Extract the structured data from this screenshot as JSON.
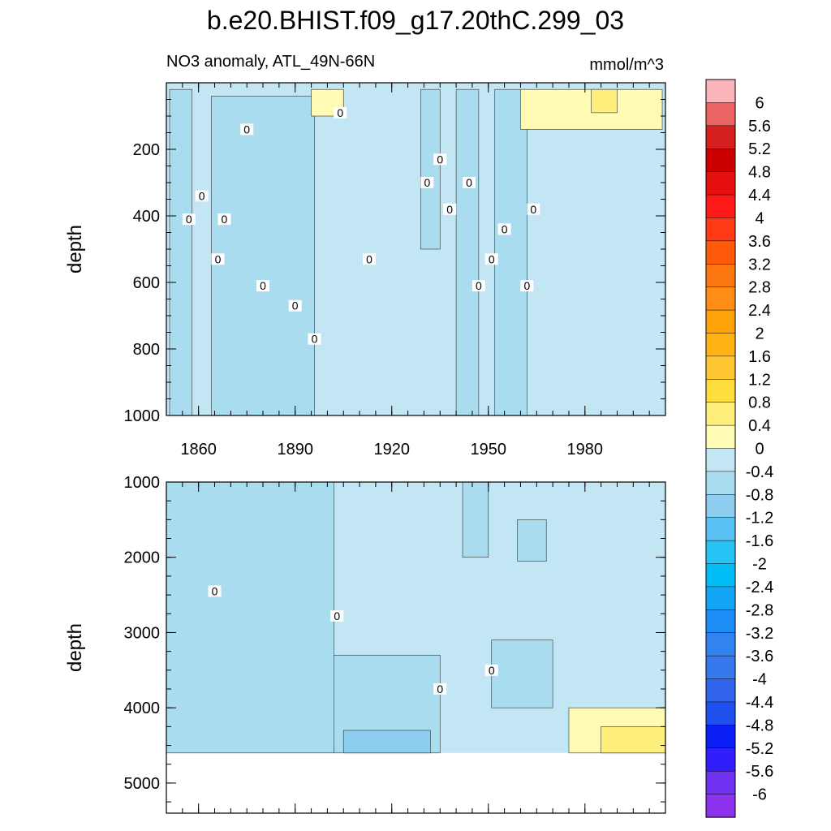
{
  "chart_data": {
    "type": "heatmap",
    "title": "b.e20.BHIST.f09_g17.20thC.299_03",
    "subtitle_left": "NO3 anomaly, ATL_49N-66N",
    "units": "mmol/m^3",
    "x": {
      "range": [
        1850,
        2005
      ],
      "tick_values": [
        1860,
        1890,
        1920,
        1950,
        1980
      ],
      "tick_labels": [
        "1860",
        "1890",
        "1920",
        "1950",
        "1980"
      ]
    },
    "panels": [
      {
        "name": "upper",
        "ylabel": "depth",
        "ylim": [
          0,
          1000
        ],
        "y_inverted": true,
        "tick_values": [
          200,
          400,
          600,
          800,
          1000
        ],
        "tick_labels": [
          "200",
          "400",
          "600",
          "800",
          "1000"
        ]
      },
      {
        "name": "lower",
        "ylabel": "depth",
        "ylim": [
          1000,
          5400
        ],
        "y_inverted": true,
        "tick_values": [
          1000,
          2000,
          3000,
          4000,
          5000
        ],
        "tick_labels": [
          "1000",
          "2000",
          "3000",
          "4000",
          "5000"
        ],
        "data_floor_depth": 4600
      }
    ],
    "contour_label": "0",
    "colorbar": {
      "labels": [
        "6",
        "5.6",
        "5.2",
        "4.8",
        "4.4",
        "4",
        "3.6",
        "3.2",
        "2.8",
        "2.4",
        "2",
        "1.6",
        "1.2",
        "0.8",
        "0.4",
        "0",
        "-0.4",
        "-0.8",
        "-1.2",
        "-1.6",
        "-2",
        "-2.4",
        "-2.8",
        "-3.2",
        "-3.6",
        "-4",
        "-4.4",
        "-4.8",
        "-5.2",
        "-5.6",
        "-6"
      ],
      "colors": [
        "#fbb4b9",
        "#eb6464",
        "#d52020",
        "#cc0000",
        "#e61010",
        "#ff1a1a",
        "#ff3a14",
        "#ff5a0a",
        "#fd7812",
        "#ff8c14",
        "#ffa20a",
        "#ffb414",
        "#ffc832",
        "#ffdd3c",
        "#fff07d",
        "#fffab4",
        "#c2e6f4",
        "#aadcf0",
        "#8ccdf0",
        "#5ac1f5",
        "#28c3f5",
        "#00bef5",
        "#14a5f5",
        "#1e8cf5",
        "#3282f0",
        "#3778ed",
        "#3264ee",
        "#1e50f0",
        "#0a1ef5",
        "#321efa",
        "#6e32f0",
        "#8c32ec"
      ]
    },
    "regions": [
      {
        "panel": "upper",
        "level": "-0.4",
        "time": [
          1851,
          1858
        ],
        "depth": [
          20,
          1000
        ]
      },
      {
        "panel": "upper",
        "level": "-0.4",
        "time": [
          1864,
          1896
        ],
        "depth": [
          40,
          1000
        ]
      },
      {
        "panel": "upper",
        "level": "-0.4",
        "time": [
          1929,
          1935
        ],
        "depth": [
          20,
          500
        ]
      },
      {
        "panel": "upper",
        "level": "-0.4",
        "time": [
          1940,
          1947
        ],
        "depth": [
          20,
          1000
        ]
      },
      {
        "panel": "upper",
        "level": "-0.4",
        "time": [
          1952,
          1962
        ],
        "depth": [
          20,
          1000
        ]
      },
      {
        "panel": "upper",
        "level": "0.4",
        "time": [
          1895,
          1905
        ],
        "depth": [
          20,
          100
        ]
      },
      {
        "panel": "upper",
        "level": "0.4",
        "time": [
          1960,
          2004
        ],
        "depth": [
          20,
          140
        ]
      },
      {
        "panel": "upper",
        "level": "0.8",
        "time": [
          1982,
          1990
        ],
        "depth": [
          20,
          90
        ]
      },
      {
        "panel": "lower",
        "level": "-0.4",
        "time": [
          1850,
          1902
        ],
        "depth": [
          1000,
          4600
        ]
      },
      {
        "panel": "lower",
        "level": "-0.4",
        "time": [
          1902,
          1935
        ],
        "depth": [
          3300,
          4600
        ]
      },
      {
        "panel": "lower",
        "level": "-0.4",
        "time": [
          1951,
          1970
        ],
        "depth": [
          3100,
          4000
        ]
      },
      {
        "panel": "lower",
        "level": "-0.4",
        "time": [
          1942,
          1950
        ],
        "depth": [
          1000,
          2000
        ]
      },
      {
        "panel": "lower",
        "level": "-0.4",
        "time": [
          1959,
          1968
        ],
        "depth": [
          1500,
          2050
        ]
      },
      {
        "panel": "lower",
        "level": "-0.8",
        "time": [
          1905,
          1932
        ],
        "depth": [
          4300,
          4600
        ]
      },
      {
        "panel": "lower",
        "level": "0.4",
        "time": [
          1975,
          2005
        ],
        "depth": [
          4000,
          4600
        ]
      },
      {
        "panel": "lower",
        "level": "0.8",
        "time": [
          1985,
          2005
        ],
        "depth": [
          4250,
          4600
        ]
      }
    ],
    "contour_label_positions": [
      {
        "panel": "upper",
        "year": 1857,
        "depth": 410
      },
      {
        "panel": "upper",
        "year": 1866,
        "depth": 530
      },
      {
        "panel": "upper",
        "year": 1868,
        "depth": 410
      },
      {
        "panel": "upper",
        "year": 1861,
        "depth": 340
      },
      {
        "panel": "upper",
        "year": 1875,
        "depth": 140
      },
      {
        "panel": "upper",
        "year": 1880,
        "depth": 610
      },
      {
        "panel": "upper",
        "year": 1890,
        "depth": 670
      },
      {
        "panel": "upper",
        "year": 1896,
        "depth": 770
      },
      {
        "panel": "upper",
        "year": 1904,
        "depth": 90
      },
      {
        "panel": "upper",
        "year": 1913,
        "depth": 530
      },
      {
        "panel": "upper",
        "year": 1931,
        "depth": 300
      },
      {
        "panel": "upper",
        "year": 1935,
        "depth": 230
      },
      {
        "panel": "upper",
        "year": 1938,
        "depth": 380
      },
      {
        "panel": "upper",
        "year": 1944,
        "depth": 300
      },
      {
        "panel": "upper",
        "year": 1947,
        "depth": 610
      },
      {
        "panel": "upper",
        "year": 1951,
        "depth": 530
      },
      {
        "panel": "upper",
        "year": 1955,
        "depth": 440
      },
      {
        "panel": "upper",
        "year": 1962,
        "depth": 610
      },
      {
        "panel": "upper",
        "year": 1964,
        "depth": 380
      },
      {
        "panel": "lower",
        "year": 1865,
        "depth": 2450
      },
      {
        "panel": "lower",
        "year": 1903,
        "depth": 2780
      },
      {
        "panel": "lower",
        "year": 1935,
        "depth": 3750
      },
      {
        "panel": "lower",
        "year": 1951,
        "depth": 3500
      }
    ]
  }
}
